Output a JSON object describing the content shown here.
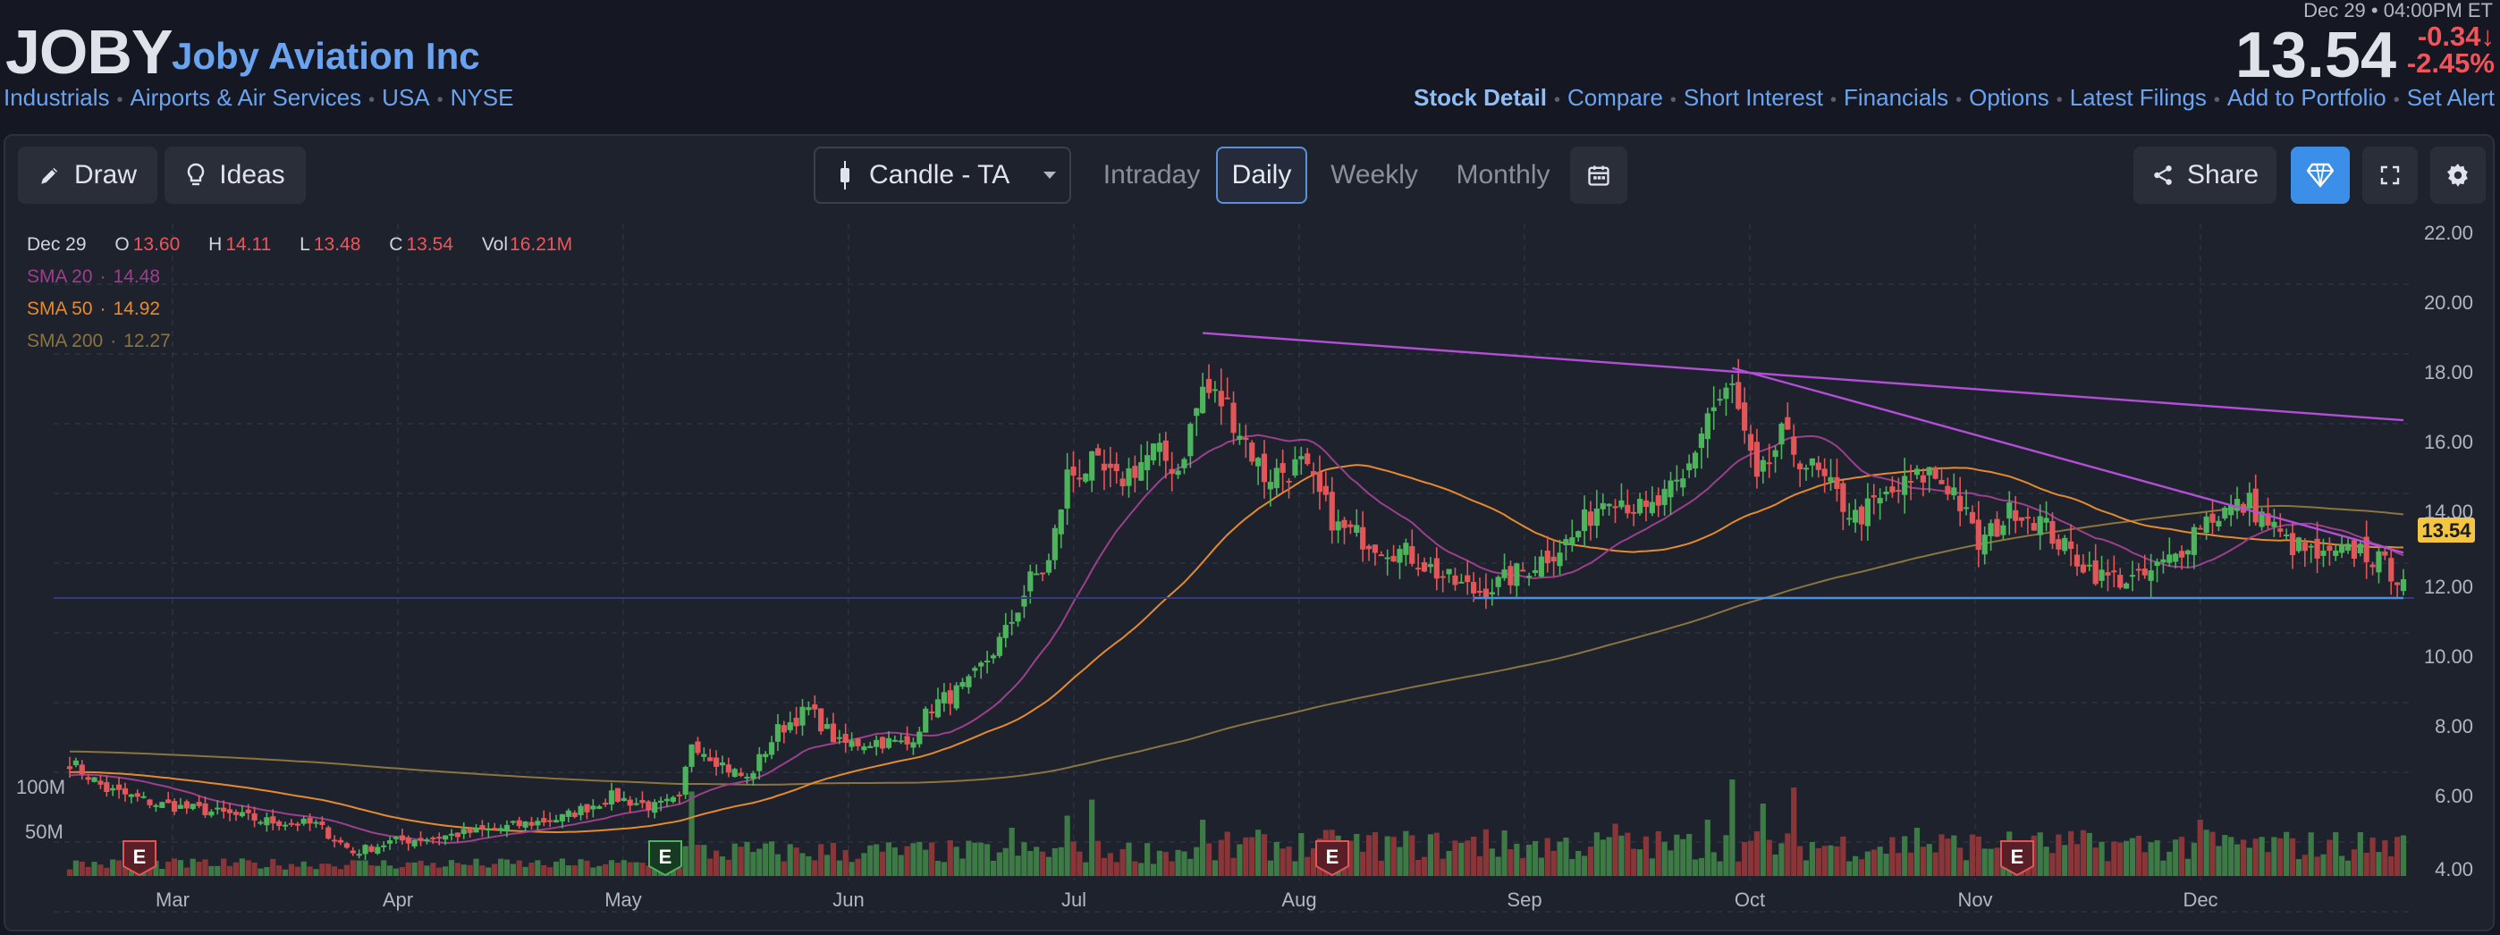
{
  "header": {
    "ticker": "JOBY",
    "company": "Joby Aviation Inc",
    "tags": [
      "Industrials",
      "Airports & Air Services",
      "USA",
      "NYSE"
    ],
    "datetime": "Dec 29 • 04:00PM ET",
    "price": "13.54",
    "change": "-0.34",
    "change_pct": "-2.45",
    "change_arrow": "↓",
    "pct_sign": "%",
    "nav": [
      {
        "label": "Stock Detail",
        "active": true
      },
      {
        "label": "Compare"
      },
      {
        "label": "Short Interest"
      },
      {
        "label": "Financials"
      },
      {
        "label": "Options"
      },
      {
        "label": "Latest Filings"
      },
      {
        "label": "Add to Portfolio"
      },
      {
        "label": "Set Alert"
      }
    ]
  },
  "toolbar": {
    "draw_label": "Draw",
    "ideas_label": "Ideas",
    "chart_type": "Candle - TA",
    "timeframes": [
      "Intraday",
      "Daily",
      "Weekly",
      "Monthly"
    ],
    "active_timeframe": "Daily",
    "share_label": "Share",
    "icons": [
      "pencil-icon",
      "lightbulb-icon",
      "candle-icon",
      "chevron-down-icon",
      "calendar-icon",
      "share-icon",
      "diamond-icon",
      "fullscreen-icon",
      "gear-icon"
    ]
  },
  "legend": {
    "date": "Dec 29",
    "open_label": "O",
    "open": "13.60",
    "high_label": "H",
    "high": "14.11",
    "low_label": "L",
    "low": "13.48",
    "close_label": "C",
    "close": "13.54",
    "vol_label": "Vol",
    "vol": "16.21M",
    "sma20_label": "SMA 20",
    "sma20": "14.48",
    "sma50_label": "SMA 50",
    "sma50": "14.92",
    "sma200_label": "SMA 200",
    "sma200": "12.27"
  },
  "colors": {
    "up": "#4db35c",
    "down": "#e15759",
    "sma20": "#9c3f8c",
    "sma50": "#e58a2e",
    "sma200": "#8a7440",
    "trendline": "#b34fd6",
    "support": "#4a8fe0",
    "accent": "#3b8fe8",
    "price_label_bg": "#f4c542"
  },
  "chart_data": {
    "type": "candlestick",
    "title": "",
    "x_ticks": [
      "Mar",
      "Apr",
      "May",
      "Jun",
      "Jul",
      "Aug",
      "Sep",
      "Oct",
      "Nov",
      "Dec"
    ],
    "y_ticks": [
      "22.00",
      "20.00",
      "18.00",
      "16.00",
      "14.00",
      "12.00",
      "10.00",
      "8.00",
      "6.00",
      "4.00"
    ],
    "ylim": [
      4,
      22
    ],
    "volume_ticks": [
      "100M",
      "50M"
    ],
    "last_price_label": "13.54",
    "earnings_markers": [
      {
        "label": "E",
        "month": "Feb",
        "type": "past"
      },
      {
        "label": "E",
        "month": "May",
        "type": "upcoming"
      },
      {
        "label": "E",
        "month": "Aug",
        "type": "past"
      },
      {
        "label": "E",
        "month": "Nov",
        "type": "past"
      }
    ],
    "anchors": [
      {
        "d": 0,
        "p": 8.3
      },
      {
        "d": 6,
        "p": 7.5
      },
      {
        "d": 14,
        "p": 7.1
      },
      {
        "d": 22,
        "p": 6.9
      },
      {
        "d": 32,
        "p": 6.6
      },
      {
        "d": 40,
        "p": 6.5
      },
      {
        "d": 46,
        "p": 5.7
      },
      {
        "d": 52,
        "p": 6.0
      },
      {
        "d": 62,
        "p": 6.2
      },
      {
        "d": 70,
        "p": 6.4
      },
      {
        "d": 80,
        "p": 6.7
      },
      {
        "d": 88,
        "p": 7.3
      },
      {
        "d": 95,
        "p": 7.0
      },
      {
        "d": 99,
        "p": 7.2
      },
      {
        "d": 101,
        "p": 8.9
      },
      {
        "d": 107,
        "p": 8.1
      },
      {
        "d": 110,
        "p": 7.8
      },
      {
        "d": 115,
        "p": 9.2
      },
      {
        "d": 120,
        "p": 9.8
      },
      {
        "d": 125,
        "p": 8.8
      },
      {
        "d": 131,
        "p": 8.9
      },
      {
        "d": 136,
        "p": 8.8
      },
      {
        "d": 140,
        "p": 9.9
      },
      {
        "d": 146,
        "p": 10.5
      },
      {
        "d": 152,
        "p": 12.0
      },
      {
        "d": 156,
        "p": 13.5
      },
      {
        "d": 159,
        "p": 14.0
      },
      {
        "d": 162,
        "p": 16.5
      },
      {
        "d": 166,
        "p": 16.8
      },
      {
        "d": 170,
        "p": 16.3
      },
      {
        "d": 176,
        "p": 17.2
      },
      {
        "d": 180,
        "p": 16.7
      },
      {
        "d": 184,
        "p": 19.0
      },
      {
        "d": 188,
        "p": 18.5
      },
      {
        "d": 194,
        "p": 16.5
      },
      {
        "d": 200,
        "p": 16.8
      },
      {
        "d": 206,
        "p": 15.0
      },
      {
        "d": 212,
        "p": 14.6
      },
      {
        "d": 218,
        "p": 14.2
      },
      {
        "d": 224,
        "p": 13.5
      },
      {
        "d": 228,
        "p": 13.2
      },
      {
        "d": 232,
        "p": 13.4
      },
      {
        "d": 238,
        "p": 14.0
      },
      {
        "d": 244,
        "p": 14.7
      },
      {
        "d": 250,
        "p": 16.1
      },
      {
        "d": 256,
        "p": 15.4
      },
      {
        "d": 262,
        "p": 16.3
      },
      {
        "d": 266,
        "p": 18.3
      },
      {
        "d": 270,
        "p": 19.0
      },
      {
        "d": 274,
        "p": 16.2
      },
      {
        "d": 278,
        "p": 17.6
      },
      {
        "d": 284,
        "p": 16.5
      },
      {
        "d": 290,
        "p": 15.3
      },
      {
        "d": 296,
        "p": 16.0
      },
      {
        "d": 302,
        "p": 16.6
      },
      {
        "d": 306,
        "p": 16.1
      },
      {
        "d": 310,
        "p": 14.5
      },
      {
        "d": 316,
        "p": 15.6
      },
      {
        "d": 320,
        "p": 15.2
      },
      {
        "d": 324,
        "p": 14.4
      },
      {
        "d": 330,
        "p": 13.6
      },
      {
        "d": 336,
        "p": 13.5
      },
      {
        "d": 342,
        "p": 14.2
      },
      {
        "d": 346,
        "p": 15.2
      },
      {
        "d": 350,
        "p": 15.5
      },
      {
        "d": 354,
        "p": 15.7
      },
      {
        "d": 360,
        "p": 14.6
      },
      {
        "d": 366,
        "p": 14.1
      },
      {
        "d": 372,
        "p": 14.4
      },
      {
        "d": 376,
        "p": 13.9
      },
      {
        "d": 379,
        "p": 13.54
      }
    ],
    "volume_spikes": [
      {
        "d": 101,
        "v": 105
      },
      {
        "d": 153,
        "v": 60
      },
      {
        "d": 162,
        "v": 75
      },
      {
        "d": 166,
        "v": 95
      },
      {
        "d": 184,
        "v": 70
      },
      {
        "d": 188,
        "v": 55
      },
      {
        "d": 251,
        "v": 65
      },
      {
        "d": 266,
        "v": 70
      },
      {
        "d": 270,
        "v": 120
      },
      {
        "d": 275,
        "v": 90
      },
      {
        "d": 280,
        "v": 110
      },
      {
        "d": 346,
        "v": 70
      },
      {
        "d": 300,
        "v": 60
      },
      {
        "d": 230,
        "v": 58
      }
    ],
    "trendlines": [
      {
        "from": {
          "d": 184,
          "p": 20.6
        },
        "to": {
          "d": 379,
          "p": 18.1
        }
      },
      {
        "from": {
          "d": 270,
          "p": 19.6
        },
        "to": {
          "d": 379,
          "p": 14.3
        }
      },
      {
        "from": {
          "d": 228,
          "p": 13.0
        },
        "to": {
          "d": 379,
          "p": 13.0
        }
      }
    ],
    "horizontal_line": 13.0
  }
}
